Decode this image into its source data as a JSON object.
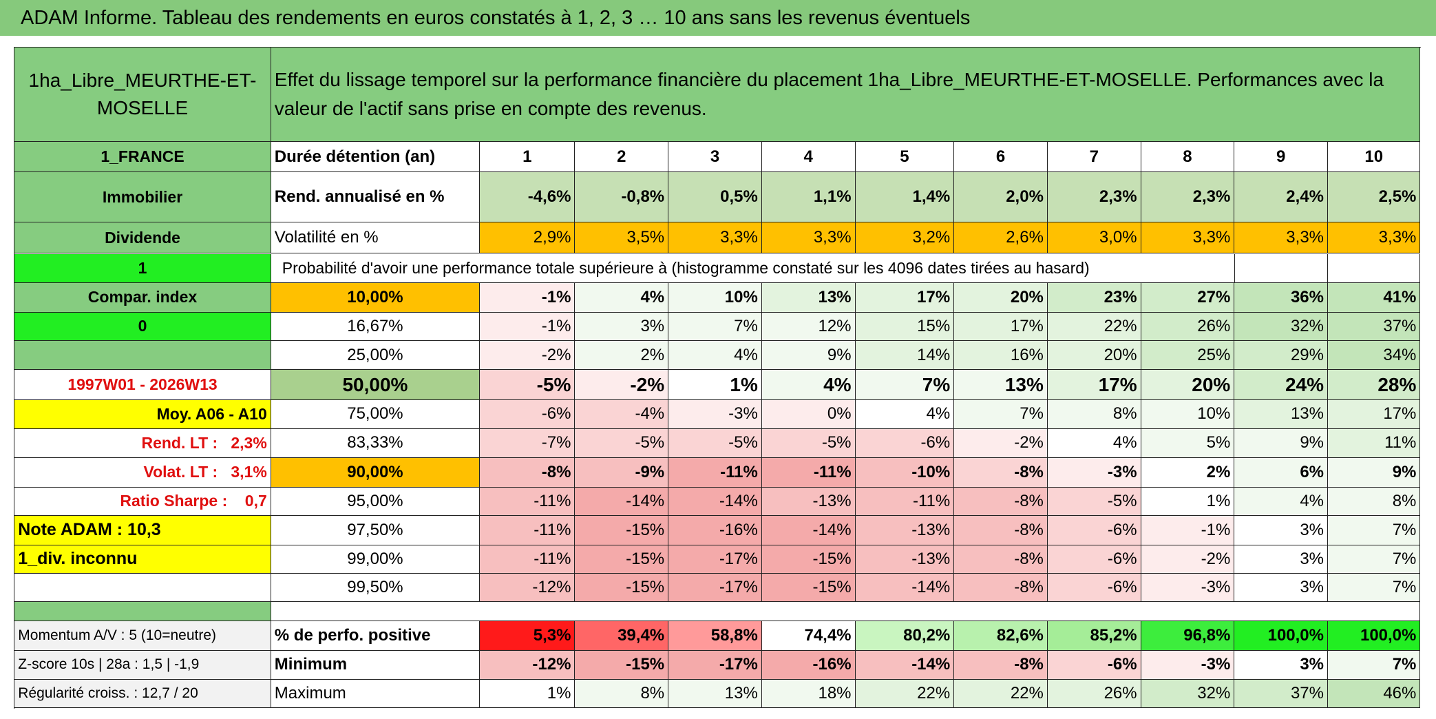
{
  "title": "ADAM Informe. Tableau des rendements en euros constatés à 1, 2, 3 … 10 ans sans les revenus éventuels",
  "header": {
    "label": "1ha_Libre_MEURTHE-ET-MOSELLE",
    "text": "Effet du lissage temporel sur la performance financière du placement 1ha_Libre_MEURTHE-ET-MOSELLE. Performances avec la valeur de l'actif sans prise en compte des revenus."
  },
  "rows": [
    {
      "label": "1_FRANCE",
      "key": "Durée détention (an)",
      "values": [
        "1",
        "2",
        "3",
        "4",
        "5",
        "6",
        "7",
        "8",
        "9",
        "10"
      ]
    },
    {
      "label": "Immobilier",
      "key": "Rend. annualisé en %",
      "values": [
        "-4,6%",
        "-0,8%",
        "0,5%",
        "1,1%",
        "1,4%",
        "2,0%",
        "2,3%",
        "2,3%",
        "2,4%",
        "2,5%"
      ]
    },
    {
      "label": "Dividende",
      "key": "Volatilité en %",
      "values": [
        "2,9%",
        "3,5%",
        "3,3%",
        "3,3%",
        "3,2%",
        "2,6%",
        "3,0%",
        "3,3%",
        "3,3%",
        "3,3%"
      ]
    },
    {
      "label": "1",
      "text": "Probabilité d'avoir une performance totale supérieure à (histogramme constaté sur les 4096 dates tirées au hasard)"
    },
    {
      "label": "Compar. index",
      "key": "10,00%",
      "values": [
        "-1%",
        "4%",
        "10%",
        "13%",
        "17%",
        "20%",
        "23%",
        "27%",
        "36%",
        "41%"
      ]
    },
    {
      "label": "0",
      "key": "16,67%",
      "values": [
        "-1%",
        "3%",
        "7%",
        "12%",
        "15%",
        "17%",
        "22%",
        "26%",
        "32%",
        "37%"
      ]
    },
    {
      "key": "25,00%",
      "values": [
        "-2%",
        "2%",
        "4%",
        "9%",
        "14%",
        "16%",
        "20%",
        "25%",
        "29%",
        "34%"
      ]
    },
    {
      "label": "1997W01 - 2026W13",
      "key": "50,00%",
      "values": [
        "-5%",
        "-2%",
        "1%",
        "4%",
        "7%",
        "13%",
        "17%",
        "20%",
        "24%",
        "28%"
      ]
    },
    {
      "label": "Moy. A06 - A10",
      "key": "75,00%",
      "values": [
        "-6%",
        "-4%",
        "-3%",
        "0%",
        "4%",
        "7%",
        "8%",
        "10%",
        "13%",
        "17%"
      ]
    },
    {
      "label": "Rend. LT :   2,3%",
      "key": "83,33%",
      "values": [
        "-7%",
        "-5%",
        "-5%",
        "-5%",
        "-6%",
        "-2%",
        "4%",
        "5%",
        "9%",
        "11%"
      ]
    },
    {
      "label": "Volat. LT :   3,1%",
      "key": "90,00%",
      "values": [
        "-8%",
        "-9%",
        "-11%",
        "-11%",
        "-10%",
        "-8%",
        "-3%",
        "2%",
        "6%",
        "9%"
      ]
    },
    {
      "label": "Ratio Sharpe :    0,7",
      "key": "95,00%",
      "values": [
        "-11%",
        "-14%",
        "-14%",
        "-13%",
        "-11%",
        "-8%",
        "-5%",
        "1%",
        "4%",
        "8%"
      ]
    },
    {
      "label": "Note ADAM : 10,3",
      "key": "97,50%",
      "values": [
        "-11%",
        "-15%",
        "-16%",
        "-14%",
        "-13%",
        "-8%",
        "-6%",
        "-1%",
        "3%",
        "7%"
      ]
    },
    {
      "label": "1_div. inconnu",
      "key": "99,00%",
      "values": [
        "-11%",
        "-15%",
        "-17%",
        "-15%",
        "-13%",
        "-8%",
        "-6%",
        "-2%",
        "3%",
        "7%"
      ]
    },
    {
      "key": "99,50%",
      "values": [
        "-12%",
        "-15%",
        "-17%",
        "-15%",
        "-14%",
        "-8%",
        "-6%",
        "-3%",
        "3%",
        "7%"
      ]
    },
    {
      "label": "Momentum A/V : 5 (10=neutre)",
      "key": "% de perfo. positive",
      "values": [
        "5,3%",
        "39,4%",
        "58,8%",
        "74,4%",
        "80,2%",
        "82,6%",
        "85,2%",
        "96,8%",
        "100,0%",
        "100,0%"
      ]
    },
    {
      "label": "Z-score 10s | 28a : 1,5 | -1,9",
      "key": "Minimum",
      "values": [
        "-12%",
        "-15%",
        "-17%",
        "-16%",
        "-14%",
        "-8%",
        "-6%",
        "-3%",
        "3%",
        "7%"
      ]
    },
    {
      "label": "Régularité croiss. : 12,7 / 20",
      "key": "Maximum",
      "values": [
        "1%",
        "8%",
        "13%",
        "18%",
        "22%",
        "22%",
        "26%",
        "32%",
        "37%",
        "46%"
      ]
    }
  ]
}
